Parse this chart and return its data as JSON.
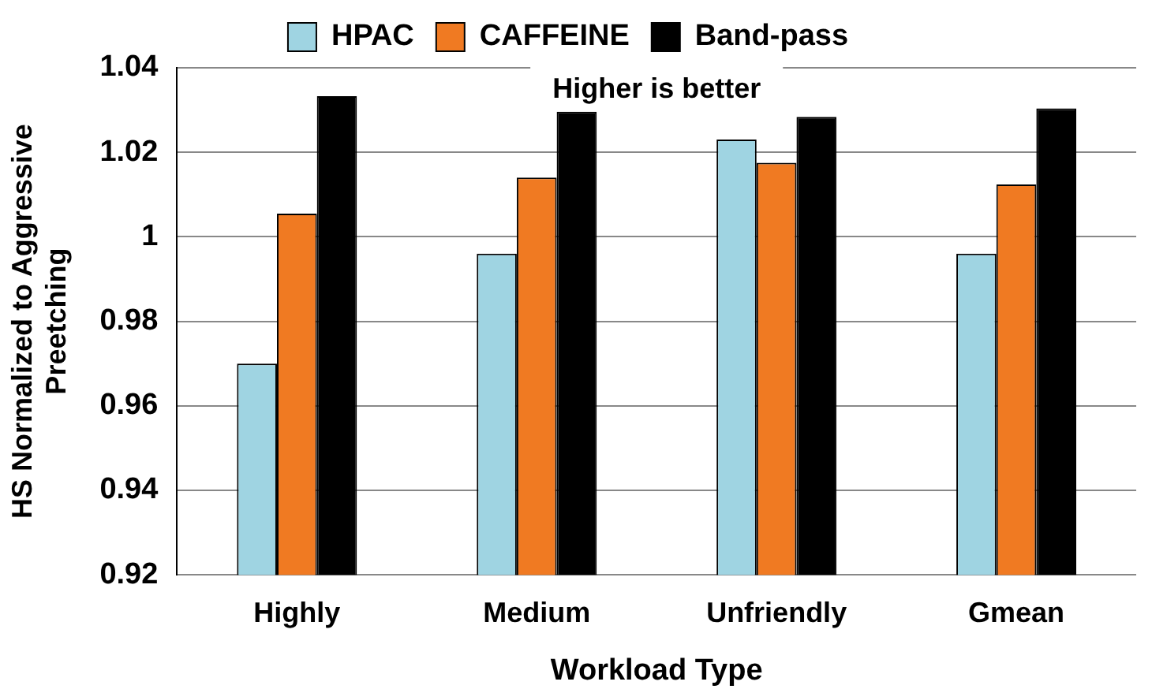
{
  "chart_data": {
    "type": "bar",
    "xlabel": "Workload Type",
    "ylabel": "HS Normalized to Aggressive Preetching",
    "categories": [
      "Highly",
      "Medium",
      "Unfriendly",
      "Gmean"
    ],
    "series": [
      {
        "name": "HPAC",
        "color": "#9fd4e2",
        "values": [
          0.97,
          0.996,
          1.023,
          0.996
        ]
      },
      {
        "name": "CAFFEINE",
        "color": "#f07a22",
        "values": [
          1.0055,
          1.014,
          1.0175,
          1.0124
        ]
      },
      {
        "name": "Band-pass",
        "color": "#000000",
        "values": [
          1.0333,
          1.0296,
          1.0284,
          1.0304
        ]
      }
    ],
    "ylim": [
      0.92,
      1.04
    ],
    "yticks": [
      {
        "value": 0.92,
        "label": "0.92"
      },
      {
        "value": 0.94,
        "label": "0.94"
      },
      {
        "value": 0.96,
        "label": "0.96"
      },
      {
        "value": 0.98,
        "label": "0.98"
      },
      {
        "value": 1,
        "label": "1"
      },
      {
        "value": 1.02,
        "label": "1.02"
      },
      {
        "value": 1.04,
        "label": "1.04"
      }
    ],
    "grid": "y",
    "legend": "top",
    "annotations": [
      "Higher is better"
    ]
  }
}
